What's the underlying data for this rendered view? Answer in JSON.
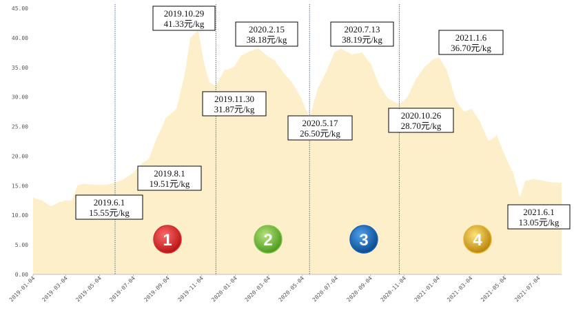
{
  "chart_data": {
    "type": "area",
    "title": "",
    "xlabel": "",
    "ylabel": "",
    "x_range": [
      "2019-01-04",
      "2021-08-15"
    ],
    "ylim": [
      0,
      45
    ],
    "yticks": [
      "0.00",
      "5.00",
      "10.00",
      "15.00",
      "20.00",
      "25.00",
      "30.00",
      "35.00",
      "40.00",
      "45.00"
    ],
    "xticks": [
      "2019-01-04",
      "2019-03-04",
      "2019-05-04",
      "2019-07-04",
      "2019-09-04",
      "2019-11-04",
      "2020-01-04",
      "2020-03-04",
      "2020-05-04",
      "2020-07-04",
      "2020-09-04",
      "2020-11-04",
      "2021-01-04",
      "2021-03-04",
      "2021-05-04",
      "2021-07-04"
    ],
    "grid": false,
    "legend": "none",
    "fill_color": "#FDEFC9",
    "series": [
      {
        "points": [
          [
            "2019-01-04",
            13.0
          ],
          [
            "2019-01-20",
            12.5
          ],
          [
            "2019-02-05",
            11.5
          ],
          [
            "2019-02-20",
            12.2
          ],
          [
            "2019-03-04",
            12.5
          ],
          [
            "2019-03-15",
            12.5
          ],
          [
            "2019-03-25",
            15.0
          ],
          [
            "2019-04-05",
            15.3
          ],
          [
            "2019-04-20",
            15.2
          ],
          [
            "2019-05-04",
            15.1
          ],
          [
            "2019-05-20",
            15.2
          ],
          [
            "2019-06-01",
            15.55
          ],
          [
            "2019-06-15",
            16.0
          ],
          [
            "2019-07-01",
            17.0
          ],
          [
            "2019-07-20",
            18.8
          ],
          [
            "2019-08-01",
            19.51
          ],
          [
            "2019-08-15",
            23.0
          ],
          [
            "2019-09-01",
            26.5
          ],
          [
            "2019-09-20",
            28.0
          ],
          [
            "2019-10-05",
            34.0
          ],
          [
            "2019-10-15",
            40.0
          ],
          [
            "2019-10-29",
            41.33
          ],
          [
            "2019-11-08",
            36.0
          ],
          [
            "2019-11-18",
            32.5
          ],
          [
            "2019-11-30",
            31.87
          ],
          [
            "2019-12-15",
            34.5
          ],
          [
            "2020-01-01",
            35.0
          ],
          [
            "2020-01-15",
            37.0
          ],
          [
            "2020-02-01",
            37.8
          ],
          [
            "2020-02-15",
            38.18
          ],
          [
            "2020-03-01",
            37.0
          ],
          [
            "2020-03-15",
            36.2
          ],
          [
            "2020-04-01",
            34.0
          ],
          [
            "2020-04-15",
            32.5
          ],
          [
            "2020-05-01",
            30.0
          ],
          [
            "2020-05-17",
            26.5
          ],
          [
            "2020-06-01",
            31.5
          ],
          [
            "2020-06-15",
            34.0
          ],
          [
            "2020-07-01",
            37.5
          ],
          [
            "2020-07-13",
            38.19
          ],
          [
            "2020-08-01",
            37.2
          ],
          [
            "2020-08-20",
            37.5
          ],
          [
            "2020-09-05",
            35.5
          ],
          [
            "2020-09-20",
            32.0
          ],
          [
            "2020-10-05",
            29.8
          ],
          [
            "2020-10-26",
            28.7
          ],
          [
            "2020-11-10",
            30.0
          ],
          [
            "2020-11-25",
            33.0
          ],
          [
            "2020-12-10",
            35.0
          ],
          [
            "2020-12-25",
            36.3
          ],
          [
            "2021-01-06",
            36.7
          ],
          [
            "2021-01-20",
            34.5
          ],
          [
            "2021-02-05",
            29.5
          ],
          [
            "2021-02-20",
            27.5
          ],
          [
            "2021-03-05",
            28.0
          ],
          [
            "2021-03-20",
            26.0
          ],
          [
            "2021-04-05",
            22.5
          ],
          [
            "2021-04-20",
            23.5
          ],
          [
            "2021-05-05",
            20.0
          ],
          [
            "2021-05-20",
            17.0
          ],
          [
            "2021-06-01",
            13.05
          ],
          [
            "2021-06-10",
            15.8
          ],
          [
            "2021-06-25",
            16.1
          ],
          [
            "2021-07-10",
            15.9
          ],
          [
            "2021-07-25",
            15.6
          ],
          [
            "2021-08-15",
            15.5
          ]
        ]
      }
    ],
    "dividers": [
      "2019-06-01",
      "2019-11-30",
      "2020-05-17",
      "2020-10-26"
    ],
    "annotations": [
      {
        "date_label": "2019.6.1",
        "value_label": "15.55元/kg"
      },
      {
        "date_label": "2019.8.1",
        "value_label": "19.51元/kg"
      },
      {
        "date_label": "2019.10.29",
        "value_label": "41.33元/kg"
      },
      {
        "date_label": "2019.11.30",
        "value_label": "31.87元/kg"
      },
      {
        "date_label": "2020.2.15",
        "value_label": "38.18元/kg"
      },
      {
        "date_label": "2020.5.17",
        "value_label": "26.50元/kg"
      },
      {
        "date_label": "2020.7.13",
        "value_label": "38.19元/kg"
      },
      {
        "date_label": "2020.10.26",
        "value_label": "28.70元/kg"
      },
      {
        "date_label": "2021.1.6",
        "value_label": "36.70元/kg"
      },
      {
        "date_label": "2021.6.1",
        "value_label": "13.05元/kg"
      }
    ],
    "phases": [
      {
        "label": "1",
        "color": "#D92B2B"
      },
      {
        "label": "2",
        "color": "#7CC242"
      },
      {
        "label": "3",
        "color": "#1565B8"
      },
      {
        "label": "4",
        "color": "#E6B020"
      }
    ]
  }
}
